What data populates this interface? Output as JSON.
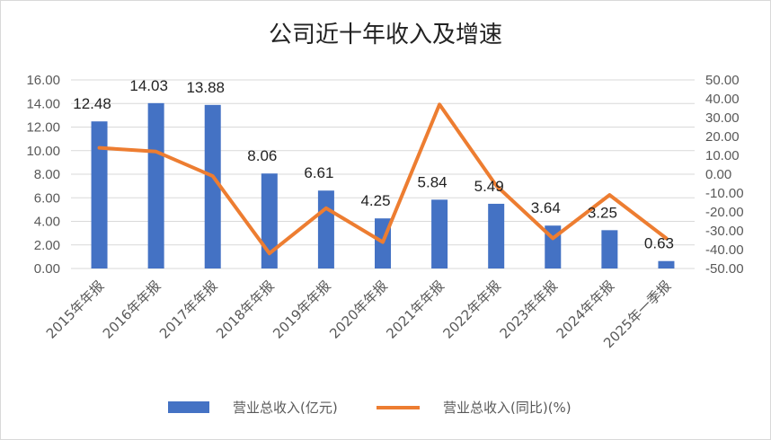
{
  "chart_data": {
    "type": "bar+line",
    "title": "公司近十年收入及增速",
    "categories": [
      "2015年年报",
      "2016年年报",
      "2017年年报",
      "2018年年报",
      "2019年年报",
      "2020年年报",
      "2021年年报",
      "2022年年报",
      "2023年年报",
      "2024年年报",
      "2025年一季报"
    ],
    "series": [
      {
        "name": "营业总收入(亿元)",
        "kind": "bar",
        "axis": "left",
        "color": "#4472C4",
        "values": [
          12.48,
          14.03,
          13.88,
          8.06,
          6.61,
          4.25,
          5.84,
          5.49,
          3.64,
          3.25,
          0.63
        ],
        "labels": [
          "12.48",
          "14.03",
          "13.88",
          "8.06",
          "6.61",
          "4.25",
          "5.84",
          "5.49",
          "3.64",
          "3.25",
          "0.63"
        ]
      },
      {
        "name": "营业总收入(同比)(%)",
        "kind": "line",
        "axis": "right",
        "color": "#ED7D31",
        "values": [
          14,
          12,
          -1,
          -42,
          -18,
          -36,
          37,
          -6,
          -34,
          -11,
          -34
        ]
      }
    ],
    "y_left": {
      "min": 0,
      "max": 16,
      "step": 2,
      "ticks": [
        "0.00",
        "2.00",
        "4.00",
        "6.00",
        "8.00",
        "10.00",
        "12.00",
        "14.00",
        "16.00"
      ]
    },
    "y_right": {
      "min": -50,
      "max": 50,
      "step": 10,
      "ticks": [
        "-50.00",
        "-40.00",
        "-30.00",
        "-20.00",
        "-10.00",
        "0.00",
        "10.00",
        "20.00",
        "30.00",
        "40.00",
        "50.00"
      ]
    },
    "grid": true,
    "legend_position": "bottom"
  }
}
